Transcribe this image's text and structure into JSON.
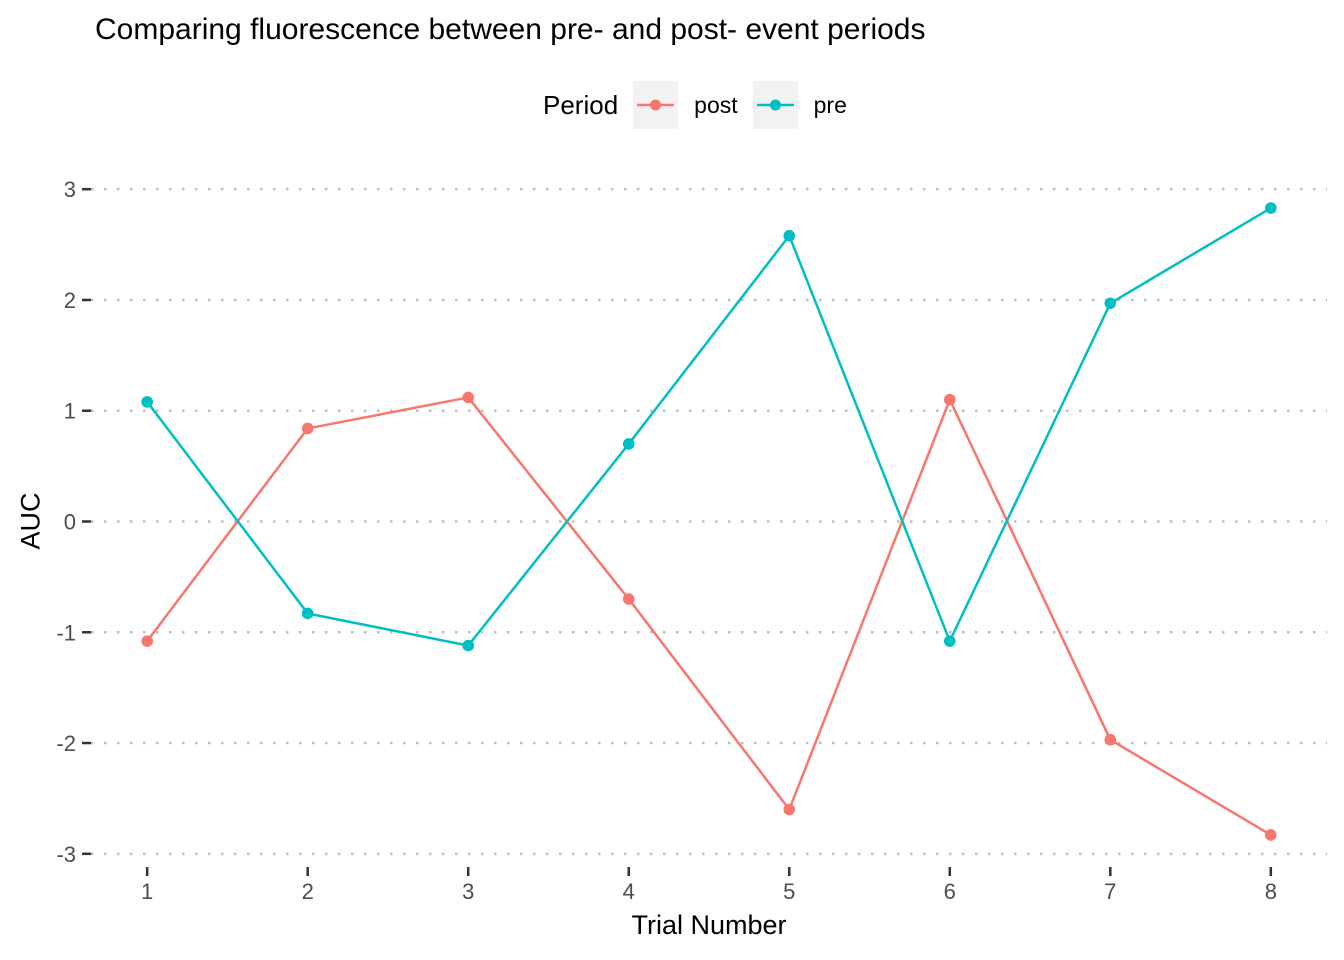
{
  "chart_data": {
    "type": "line",
    "title": "Comparing fluorescence between pre- and post- event periods",
    "legend_title": "Period",
    "legend_position": "top",
    "xlabel": "Trial Number",
    "ylabel": "AUC",
    "x": [
      1,
      2,
      3,
      4,
      5,
      6,
      7,
      8
    ],
    "series": [
      {
        "name": "post",
        "color": "#F8766D",
        "values": [
          -1.08,
          0.84,
          1.12,
          -0.7,
          -2.6,
          1.1,
          -1.97,
          -2.83
        ]
      },
      {
        "name": "pre",
        "color": "#00BFC4",
        "values": [
          1.08,
          -0.83,
          -1.12,
          0.7,
          2.58,
          -1.08,
          1.97,
          2.83
        ]
      }
    ],
    "xticks": [
      1,
      2,
      3,
      4,
      5,
      6,
      7,
      8
    ],
    "yticks": [
      -3,
      -2,
      -1,
      0,
      1,
      2,
      3
    ],
    "xlim": [
      0.65,
      8.35
    ],
    "ylim": [
      -3.11,
      3.11
    ],
    "grid": "horizontal-dotted",
    "colors": {
      "background": "#FFFFFF",
      "grid": "#BEBEBE",
      "tick": "#333333",
      "axis_text": "#4D4D4D",
      "title_text": "#000000",
      "legend_key_bg": "#F2F2F2"
    }
  }
}
